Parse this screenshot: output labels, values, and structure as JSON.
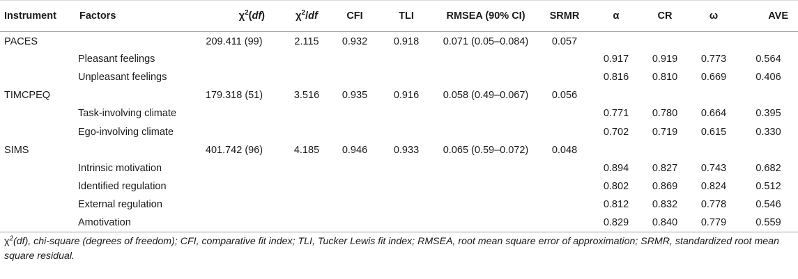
{
  "table": {
    "headers": {
      "instrument": "Instrument",
      "factors": "Factors",
      "chi2df_symbol": "χ",
      "chi2df_sup": "2",
      "chi2df_df": "df",
      "chi2ratio_symbol": "χ",
      "chi2ratio_sup": "2",
      "chi2ratio_slash": "/",
      "chi2ratio_df": "df",
      "cfi": "CFI",
      "tli": "TLI",
      "rmsea": "RMSEA (90% CI)",
      "srmr": "SRMR",
      "alpha": "α",
      "cr": "CR",
      "omega": "ω",
      "ave": "AVE"
    },
    "rows": [
      {
        "instrument": "PACES",
        "factor": "",
        "chi2": "209.411 (99)",
        "ratio": "2.115",
        "cfi": "0.932",
        "tli": "0.918",
        "rmsea": "0.071 (0.05–0.084)",
        "srmr": "0.057",
        "alpha": "",
        "cr": "",
        "omega": "",
        "ave": ""
      },
      {
        "instrument": "",
        "factor": "Pleasant feelings",
        "chi2": "",
        "ratio": "",
        "cfi": "",
        "tli": "",
        "rmsea": "",
        "srmr": "",
        "alpha": "0.917",
        "cr": "0.919",
        "omega": "0.773",
        "ave": "0.564"
      },
      {
        "instrument": "",
        "factor": "Unpleasant feelings",
        "chi2": "",
        "ratio": "",
        "cfi": "",
        "tli": "",
        "rmsea": "",
        "srmr": "",
        "alpha": "0.816",
        "cr": "0.810",
        "omega": "0.669",
        "ave": "0.406"
      },
      {
        "instrument": "TIMCPEQ",
        "factor": "",
        "chi2": "179.318 (51)",
        "ratio": "3.516",
        "cfi": "0.935",
        "tli": "0.916",
        "rmsea": "0.058 (0.49–0.067)",
        "srmr": "0.056",
        "alpha": "",
        "cr": "",
        "omega": "",
        "ave": ""
      },
      {
        "instrument": "",
        "factor": "Task-involving climate",
        "chi2": "",
        "ratio": "",
        "cfi": "",
        "tli": "",
        "rmsea": "",
        "srmr": "",
        "alpha": "0.771",
        "cr": "0.780",
        "omega": "0.664",
        "ave": "0.395"
      },
      {
        "instrument": "",
        "factor": "Ego-involving climate",
        "chi2": "",
        "ratio": "",
        "cfi": "",
        "tli": "",
        "rmsea": "",
        "srmr": "",
        "alpha": "0.702",
        "cr": "0.719",
        "omega": "0.615",
        "ave": "0.330"
      },
      {
        "instrument": "SIMS",
        "factor": "",
        "chi2": "401.742 (96)",
        "ratio": "4.185",
        "cfi": "0.946",
        "tli": "0.933",
        "rmsea": "0.065 (0.59–0.072)",
        "srmr": "0.048",
        "alpha": "",
        "cr": "",
        "omega": "",
        "ave": ""
      },
      {
        "instrument": "",
        "factor": "Intrinsic motivation",
        "chi2": "",
        "ratio": "",
        "cfi": "",
        "tli": "",
        "rmsea": "",
        "srmr": "",
        "alpha": "0.894",
        "cr": "0.827",
        "omega": "0.743",
        "ave": "0.682"
      },
      {
        "instrument": "",
        "factor": "Identified regulation",
        "chi2": "",
        "ratio": "",
        "cfi": "",
        "tli": "",
        "rmsea": "",
        "srmr": "",
        "alpha": "0.802",
        "cr": "0.869",
        "omega": "0.824",
        "ave": "0.512"
      },
      {
        "instrument": "",
        "factor": "External regulation",
        "chi2": "",
        "ratio": "",
        "cfi": "",
        "tli": "",
        "rmsea": "",
        "srmr": "",
        "alpha": "0.812",
        "cr": "0.832",
        "omega": "0.778",
        "ave": "0.546"
      },
      {
        "instrument": "",
        "factor": "Amotivation",
        "chi2": "",
        "ratio": "",
        "cfi": "",
        "tli": "",
        "rmsea": "",
        "srmr": "",
        "alpha": "0.829",
        "cr": "0.840",
        "omega": "0.779",
        "ave": "0.559"
      }
    ]
  },
  "footnote": {
    "chi": "χ",
    "chi_sup": "2",
    "text": "(df), chi-square (degrees of freedom); CFI, comparative fit index; TLI, Tucker Lewis fit index; RMSEA, root mean square error of approximation; SRMR, standardized root mean square residual."
  }
}
